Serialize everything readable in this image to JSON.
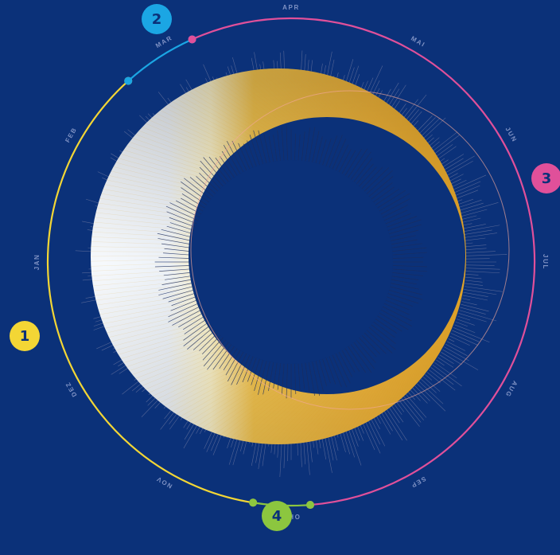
{
  "chart_data": {
    "type": "radial",
    "title": "",
    "months": [
      "JAN",
      "FEB",
      "MAR",
      "APR",
      "MAI",
      "JUN",
      "JUL",
      "AUG",
      "SEP",
      "OKT",
      "NOV",
      "DEZ"
    ],
    "start_month": "JAN",
    "center_month": "JUL",
    "arcs": [
      {
        "label": "1",
        "color": "#f3d635",
        "start_month": "OKT",
        "end_month": "MAR"
      },
      {
        "label": "2",
        "color": "#1ba6e4",
        "start_month": "MAR",
        "end_month": "MAR"
      },
      {
        "label": "3",
        "color": "#e0509a",
        "start_month": "MAR",
        "end_month": "OKT"
      },
      {
        "label": "4",
        "color": "#8cc63f",
        "start_month": "OKT",
        "end_month": "OKT"
      }
    ],
    "ring_colors": {
      "light": "#f4f7fb",
      "gold": "#f0b43a",
      "gold_dark": "#d99a1e",
      "spikes": "#8e8fae",
      "outline": "#f3a89a"
    }
  }
}
